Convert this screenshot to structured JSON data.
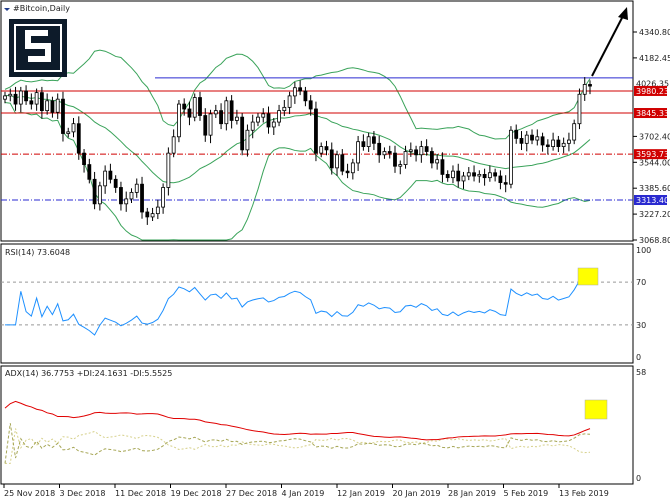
{
  "symbol_title": "#Bitcoin,Daily",
  "watermark": "S",
  "colors": {
    "background": "#ffffff",
    "grid": "#c9c9c9",
    "candle": "#000000",
    "bollinger": "#3aa35a",
    "resistance": "#d00000",
    "support_blue": "#2a2ad0",
    "rsi_line": "#1e90ff",
    "adx_line": "#e00000",
    "di_plus": "#a6a655",
    "di_minus": "#d6d08a",
    "highlight": "#ffff00",
    "arrow": "#000000"
  },
  "price_axis": {
    "ticks": [
      "4340.80",
      "4182.45",
      "3702.40",
      "3544.00",
      "3385.60",
      "3227.20",
      "3068.80"
    ],
    "current_price": "4026.35"
  },
  "levels": [
    {
      "value": "3980.23",
      "color": "#d00000",
      "style": "solid"
    },
    {
      "value": "3845.33",
      "color": "#d00000",
      "style": "solid"
    },
    {
      "value": "3593.73",
      "color": "#d00000",
      "style": "dashdot"
    },
    {
      "value": "3313.40",
      "color": "#2a2ad0",
      "style": "dashdot"
    }
  ],
  "rsi": {
    "label": "RSI(14) 73.6048",
    "ticks": [
      "100",
      "70",
      "30",
      "0"
    ]
  },
  "adx": {
    "label": "ADX(14) 36.7753 +DI:24.1631 -DI:5.5525",
    "ticks": [
      "58",
      "0"
    ]
  },
  "date_axis": [
    "25 Nov 2018",
    "3 Dec 2018",
    "11 Dec 2018",
    "19 Dec 2018",
    "27 Dec 2018",
    "4 Jan 2019",
    "12 Jan 2019",
    "20 Jan 2019",
    "28 Jan 2019",
    "5 Feb 2019",
    "13 Feb 2019"
  ],
  "chart_data": {
    "type": "candlestick",
    "closes": [
      3950,
      3960,
      3900,
      3980,
      3920,
      3900,
      3970,
      3860,
      3920,
      3850,
      3930,
      3720,
      3730,
      3780,
      3600,
      3530,
      3440,
      3290,
      3400,
      3490,
      3440,
      3390,
      3290,
      3320,
      3360,
      3410,
      3240,
      3210,
      3230,
      3270,
      3390,
      3600,
      3700,
      3900,
      3870,
      3820,
      3940,
      3830,
      3710,
      3840,
      3860,
      3780,
      3920,
      3800,
      3820,
      3620,
      3740,
      3790,
      3820,
      3840,
      3760,
      3790,
      3860,
      3880,
      3950,
      4000,
      3980,
      3920,
      3870,
      3600,
      3640,
      3620,
      3510,
      3590,
      3490,
      3480,
      3540,
      3670,
      3640,
      3700,
      3660,
      3590,
      3610,
      3600,
      3520,
      3530,
      3610,
      3620,
      3590,
      3640,
      3610,
      3540,
      3560,
      3470,
      3450,
      3490,
      3430,
      3460,
      3480,
      3460,
      3470,
      3450,
      3480,
      3460,
      3420,
      3410,
      3740,
      3690,
      3660,
      3710,
      3680,
      3700,
      3650,
      3640,
      3680,
      3640,
      3660,
      3680,
      3780,
      3960,
      4020,
      4010
    ]
  }
}
